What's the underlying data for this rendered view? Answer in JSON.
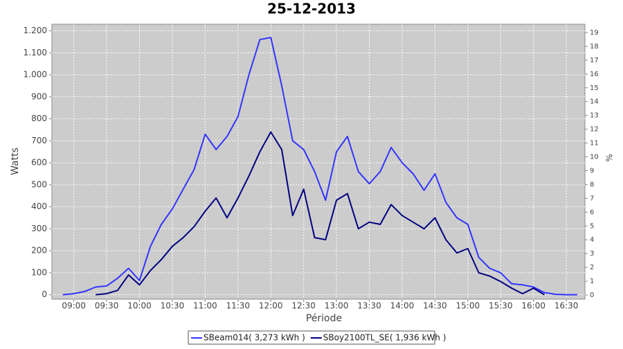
{
  "chart_data": {
    "type": "line",
    "title": "25-12-2013",
    "x_label": "Période",
    "y_label": "Watts",
    "y2_label": "%",
    "x": [
      "08:50",
      "09:00",
      "09:10",
      "09:20",
      "09:30",
      "09:40",
      "09:50",
      "10:00",
      "10:10",
      "10:20",
      "10:30",
      "10:40",
      "10:50",
      "11:00",
      "11:10",
      "11:20",
      "11:30",
      "11:40",
      "11:50",
      "12:00",
      "12:10",
      "12:20",
      "12:30",
      "12:40",
      "12:50",
      "13:00",
      "13:10",
      "13:20",
      "13:30",
      "13:40",
      "13:50",
      "14:00",
      "14:10",
      "14:20",
      "14:30",
      "14:40",
      "14:50",
      "15:00",
      "15:10",
      "15:20",
      "15:30",
      "15:40",
      "15:50",
      "16:00",
      "16:10",
      "16:20",
      "16:30",
      "16:40"
    ],
    "series": [
      {
        "name": "SBeam014( 3,273 kWh )",
        "color": "#3333ff",
        "values": [
          0,
          5,
          15,
          35,
          40,
          75,
          120,
          65,
          220,
          320,
          390,
          480,
          570,
          730,
          660,
          720,
          810,
          1000,
          1160,
          1170,
          950,
          700,
          660,
          560,
          430,
          650,
          720,
          560,
          505,
          560,
          670,
          600,
          550,
          475,
          550,
          420,
          350,
          320,
          170,
          120,
          100,
          50,
          45,
          35,
          10,
          2,
          0,
          0
        ]
      },
      {
        "name": "SBoy2100TL_SE( 1,936 kWh )",
        "color": "#000080",
        "values": [
          null,
          null,
          null,
          0,
          5,
          20,
          90,
          45,
          110,
          160,
          220,
          260,
          310,
          380,
          440,
          350,
          440,
          540,
          650,
          740,
          660,
          360,
          480,
          260,
          250,
          430,
          460,
          300,
          330,
          320,
          410,
          360,
          330,
          300,
          350,
          250,
          190,
          210,
          100,
          85,
          60,
          30,
          5,
          30,
          0,
          null,
          null,
          null
        ]
      }
    ],
    "xlim": [
      "08:40",
      "16:47"
    ],
    "xticks": [
      "09:00",
      "09:30",
      "10:00",
      "10:30",
      "11:00",
      "11:30",
      "12:00",
      "12:30",
      "13:00",
      "13:30",
      "14:00",
      "14:30",
      "15:00",
      "15:30",
      "16:00",
      "16:30"
    ],
    "ylim": [
      -20,
      1230
    ],
    "yticks": [
      0,
      100,
      200,
      300,
      400,
      500,
      600,
      700,
      800,
      900,
      {
        "value": 1000,
        "label": "1.000"
      },
      {
        "value": 1100,
        "label": "1.100"
      },
      {
        "value": 1200,
        "label": "1.200"
      }
    ],
    "y2lim": [
      -0.3,
      19.6
    ],
    "y2ticks": [
      0,
      1,
      2,
      3,
      4,
      5,
      6,
      7,
      8,
      9,
      10,
      11,
      12,
      13,
      14,
      15,
      16,
      17,
      18,
      19
    ],
    "grid": true
  }
}
